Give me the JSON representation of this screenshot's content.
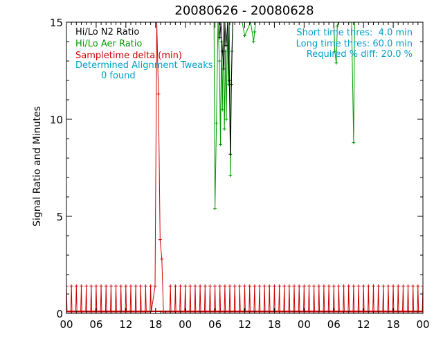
{
  "chart_data": {
    "type": "line",
    "title": "20080626 - 20080628",
    "ylabel": "Signal Ratio and Minutes",
    "xlabel": "",
    "x_unit": "hours since 2008-06-26 00:00",
    "xlim": [
      0,
      72
    ],
    "ylim": [
      0,
      15
    ],
    "grid": false,
    "x_tick_values": [
      0,
      6,
      12,
      18,
      24,
      30,
      36,
      42,
      48,
      54,
      60,
      66,
      72
    ],
    "x_tick_labels": [
      "00",
      "06",
      "12",
      "18",
      "00",
      "06",
      "12",
      "18",
      "00",
      "06",
      "12",
      "18",
      "00"
    ],
    "y_tick_values": [
      0,
      5,
      10,
      15
    ],
    "y_tick_labels": [
      "0",
      "5",
      "10",
      "15"
    ],
    "legend": {
      "placement": "top-left",
      "entries": [
        {
          "label": "Hi/Lo N2 Ratio",
          "color": "#000000"
        },
        {
          "label": "Hi/Lo Aer Ratio",
          "color": "#009900"
        },
        {
          "label": "Sampletime delta (min)",
          "color": "#cc0000"
        },
        {
          "label": "Determined Alignment Tweaks",
          "color": "#00a0c8"
        },
        {
          "label": "0 found",
          "color": "#00a0c8"
        }
      ]
    },
    "thresholds": {
      "placement": "top-right",
      "color": "#00a0c8",
      "lines": [
        "Short time thres:  4.0 min",
        "Long time thres: 60.0 min",
        "Required % diff: 20.0 %"
      ]
    },
    "series": [
      {
        "name": "Hi/Lo N2 Ratio",
        "color": "#000000",
        "x": [
          30.8,
          31.0,
          31.2,
          31.5,
          31.8,
          32.0,
          32.2,
          32.6,
          32.9,
          33.1,
          33.3,
          33.6
        ],
        "y": [
          15,
          14.2,
          15,
          13.5,
          12.6,
          15,
          13.8,
          15,
          12.0,
          8.2,
          11.8,
          15
        ]
      },
      {
        "name": "Hi/Lo Aer Ratio",
        "color": "#009900",
        "x": [
          29.8,
          30.0,
          30.3,
          30.6,
          30.9,
          31.1,
          31.3,
          31.5,
          31.7,
          31.9,
          32.1,
          32.3,
          32.5,
          32.7,
          32.9,
          33.1,
          33.4,
          33.6,
          33.8,
          35.5,
          36.0,
          37.2,
          37.8,
          38.0,
          38.2,
          54.0,
          54.2,
          54.5,
          54.7,
          54.9,
          57.6,
          58.0,
          58.2
        ],
        "y": [
          15,
          5.4,
          9.8,
          15,
          13.0,
          8.7,
          14.0,
          10.5,
          15,
          9.5,
          13.5,
          10.0,
          15,
          11.8,
          15,
          7.1,
          13.5,
          15,
          15,
          15,
          14.3,
          15,
          14.0,
          14.5,
          15,
          15,
          13.5,
          12.9,
          14.8,
          15,
          15,
          8.8,
          15
        ]
      },
      {
        "name": "Sampletime delta (min)",
        "color": "#cc0000",
        "baseline": 0.07,
        "spike_period_hours": 1,
        "spike_value": 1.4,
        "big_spike": {
          "x_start": 17.9,
          "x_end": 19.6,
          "y": [
            1.4,
            15,
            11.3,
            3.8,
            2.8,
            0.07
          ]
        }
      }
    ]
  }
}
